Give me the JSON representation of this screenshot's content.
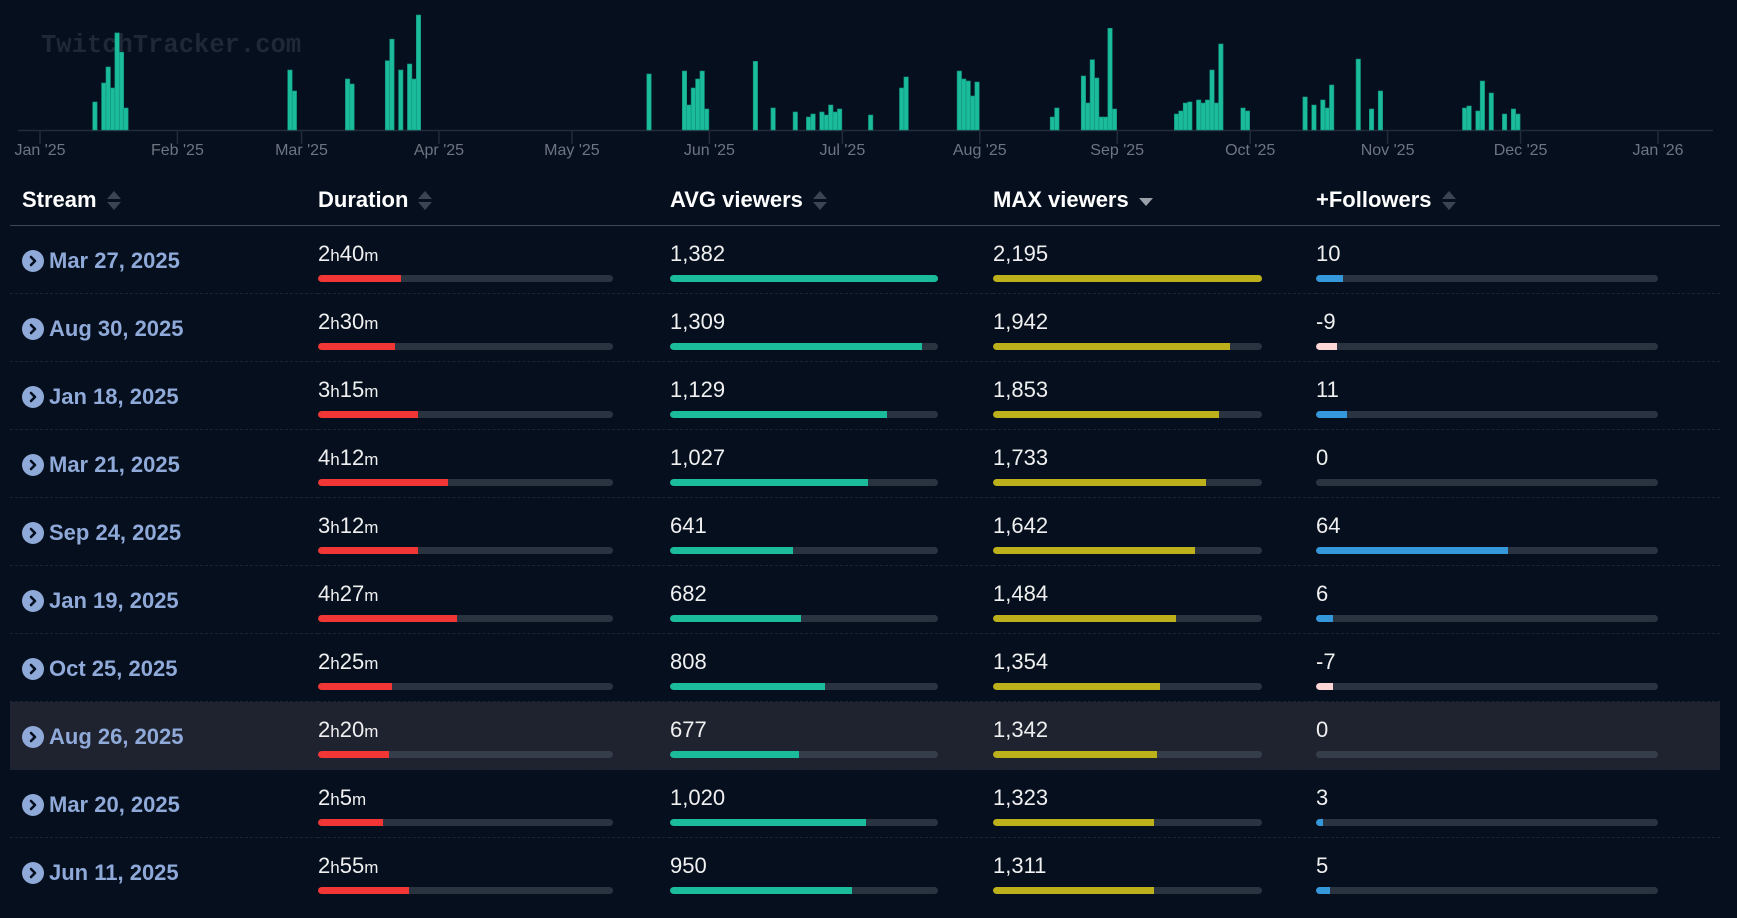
{
  "watermark": "TwitchTracker.com",
  "colors": {
    "background": "#050f1e",
    "chart_bar": "#1abc9c",
    "duration_bar": "#f23636",
    "avg_bar": "#1abc9c",
    "max_bar": "#bcb11b",
    "followers_positive_bar": "#3498db",
    "followers_negative_bar": "#ffd6d6",
    "link": "#8fa9d8"
  },
  "chart_data": {
    "type": "bar",
    "title": "",
    "xlabel": "",
    "ylabel": "MAX viewers",
    "x_range": [
      "2025-01-01",
      "2026-01-01"
    ],
    "ylim": [
      0,
      2195
    ],
    "grid": false,
    "legend": "none",
    "tick_labels": [
      "Jan '25",
      "Feb '25",
      "Mar '25",
      "Apr '25",
      "May '25",
      "Jun '25",
      "Jul '25",
      "Aug '25",
      "Sep '25",
      "Oct '25",
      "Nov '25",
      "Dec '25",
      "Jan '26"
    ],
    "tick_dates": [
      "2025-01-01",
      "2025-02-01",
      "2025-03-01",
      "2025-04-01",
      "2025-05-01",
      "2025-06-01",
      "2025-07-01",
      "2025-08-01",
      "2025-09-01",
      "2025-10-01",
      "2025-11-01",
      "2025-12-01",
      "2026-01-01"
    ],
    "points": [
      {
        "date": "2025-01-13",
        "value": 535
      },
      {
        "date": "2025-01-15",
        "value": 897
      },
      {
        "date": "2025-01-16",
        "value": 1203
      },
      {
        "date": "2025-01-17",
        "value": 802
      },
      {
        "date": "2025-01-18",
        "value": 1853
      },
      {
        "date": "2025-01-19",
        "value": 1484
      },
      {
        "date": "2025-01-20",
        "value": 420
      },
      {
        "date": "2025-02-26",
        "value": 1145
      },
      {
        "date": "2025-02-27",
        "value": 745
      },
      {
        "date": "2025-03-11",
        "value": 974
      },
      {
        "date": "2025-03-12",
        "value": 878
      },
      {
        "date": "2025-03-20",
        "value": 1323
      },
      {
        "date": "2025-03-21",
        "value": 1733
      },
      {
        "date": "2025-03-23",
        "value": 1145
      },
      {
        "date": "2025-03-25",
        "value": 1260
      },
      {
        "date": "2025-03-26",
        "value": 974
      },
      {
        "date": "2025-03-27",
        "value": 2195
      },
      {
        "date": "2025-05-18",
        "value": 1069
      },
      {
        "date": "2025-05-26",
        "value": 1126
      },
      {
        "date": "2025-05-27",
        "value": 477
      },
      {
        "date": "2025-05-28",
        "value": 802
      },
      {
        "date": "2025-05-29",
        "value": 974
      },
      {
        "date": "2025-05-30",
        "value": 1126
      },
      {
        "date": "2025-05-31",
        "value": 401
      },
      {
        "date": "2025-06-11",
        "value": 1311
      },
      {
        "date": "2025-06-15",
        "value": 420
      },
      {
        "date": "2025-06-20",
        "value": 344
      },
      {
        "date": "2025-06-23",
        "value": 248
      },
      {
        "date": "2025-06-24",
        "value": 305
      },
      {
        "date": "2025-06-26",
        "value": 344
      },
      {
        "date": "2025-06-27",
        "value": 286
      },
      {
        "date": "2025-06-28",
        "value": 477
      },
      {
        "date": "2025-06-29",
        "value": 344
      },
      {
        "date": "2025-06-30",
        "value": 401
      },
      {
        "date": "2025-07-07",
        "value": 286
      },
      {
        "date": "2025-07-14",
        "value": 802
      },
      {
        "date": "2025-07-15",
        "value": 1012
      },
      {
        "date": "2025-07-27",
        "value": 1126
      },
      {
        "date": "2025-07-28",
        "value": 974
      },
      {
        "date": "2025-07-29",
        "value": 935
      },
      {
        "date": "2025-07-30",
        "value": 649
      },
      {
        "date": "2025-07-31",
        "value": 916
      },
      {
        "date": "2025-08-17",
        "value": 248
      },
      {
        "date": "2025-08-18",
        "value": 420
      },
      {
        "date": "2025-08-24",
        "value": 1031
      },
      {
        "date": "2025-08-25",
        "value": 515
      },
      {
        "date": "2025-08-26",
        "value": 1342
      },
      {
        "date": "2025-08-27",
        "value": 993
      },
      {
        "date": "2025-08-28",
        "value": 248
      },
      {
        "date": "2025-08-29",
        "value": 248
      },
      {
        "date": "2025-08-30",
        "value": 1942
      },
      {
        "date": "2025-08-31",
        "value": 401
      },
      {
        "date": "2025-09-14",
        "value": 305
      },
      {
        "date": "2025-09-15",
        "value": 363
      },
      {
        "date": "2025-09-16",
        "value": 515
      },
      {
        "date": "2025-09-17",
        "value": 535
      },
      {
        "date": "2025-09-19",
        "value": 573
      },
      {
        "date": "2025-09-20",
        "value": 515
      },
      {
        "date": "2025-09-21",
        "value": 573
      },
      {
        "date": "2025-09-22",
        "value": 1145
      },
      {
        "date": "2025-09-23",
        "value": 515
      },
      {
        "date": "2025-09-24",
        "value": 1642
      },
      {
        "date": "2025-09-29",
        "value": 420
      },
      {
        "date": "2025-09-30",
        "value": 363
      },
      {
        "date": "2025-10-13",
        "value": 630
      },
      {
        "date": "2025-10-15",
        "value": 477
      },
      {
        "date": "2025-10-17",
        "value": 573
      },
      {
        "date": "2025-10-18",
        "value": 420
      },
      {
        "date": "2025-10-19",
        "value": 859
      },
      {
        "date": "2025-10-25",
        "value": 1354
      },
      {
        "date": "2025-10-28",
        "value": 401
      },
      {
        "date": "2025-10-30",
        "value": 745
      },
      {
        "date": "2025-11-18",
        "value": 420
      },
      {
        "date": "2025-11-19",
        "value": 458
      },
      {
        "date": "2025-11-21",
        "value": 363
      },
      {
        "date": "2025-11-22",
        "value": 935
      },
      {
        "date": "2025-11-24",
        "value": 706
      },
      {
        "date": "2025-11-27",
        "value": 305
      },
      {
        "date": "2025-11-29",
        "value": 401
      },
      {
        "date": "2025-11-30",
        "value": 305
      }
    ]
  },
  "table": {
    "columns": [
      {
        "label": "Stream",
        "sort": "none"
      },
      {
        "label": "Duration",
        "sort": "none"
      },
      {
        "label": "AVG viewers",
        "sort": "none"
      },
      {
        "label": "MAX viewers",
        "sort": "desc"
      },
      {
        "label": "+Followers",
        "sort": "none"
      }
    ],
    "highlighted_row": 7,
    "rows": [
      {
        "date": "Mar 27, 2025",
        "dur_h": "2",
        "dur_m": "40",
        "dur_pct": 28,
        "avg": "1,382",
        "avg_pct": 100,
        "max": "2,195",
        "max_pct": 100,
        "followers": "10",
        "fol_pct": 8,
        "fol_sign": "pos"
      },
      {
        "date": "Aug 30, 2025",
        "dur_h": "2",
        "dur_m": "30",
        "dur_pct": 26,
        "avg": "1,309",
        "avg_pct": 94,
        "max": "1,942",
        "max_pct": 88,
        "followers": "-9",
        "fol_pct": 6,
        "fol_sign": "neg"
      },
      {
        "date": "Jan 18, 2025",
        "dur_h": "3",
        "dur_m": "15",
        "dur_pct": 34,
        "avg": "1,129",
        "avg_pct": 81,
        "max": "1,853",
        "max_pct": 84,
        "followers": "11",
        "fol_pct": 9,
        "fol_sign": "pos"
      },
      {
        "date": "Mar 21, 2025",
        "dur_h": "4",
        "dur_m": "12",
        "dur_pct": 44,
        "avg": "1,027",
        "avg_pct": 74,
        "max": "1,733",
        "max_pct": 79,
        "followers": "0",
        "fol_pct": 0,
        "fol_sign": "pos"
      },
      {
        "date": "Sep 24, 2025",
        "dur_h": "3",
        "dur_m": "12",
        "dur_pct": 34,
        "avg": "641",
        "avg_pct": 46,
        "max": "1,642",
        "max_pct": 75,
        "followers": "64",
        "fol_pct": 56,
        "fol_sign": "pos"
      },
      {
        "date": "Jan 19, 2025",
        "dur_h": "4",
        "dur_m": "27",
        "dur_pct": 47,
        "avg": "682",
        "avg_pct": 49,
        "max": "1,484",
        "max_pct": 68,
        "followers": "6",
        "fol_pct": 5,
        "fol_sign": "pos"
      },
      {
        "date": "Oct 25, 2025",
        "dur_h": "2",
        "dur_m": "25",
        "dur_pct": 25,
        "avg": "808",
        "avg_pct": 58,
        "max": "1,354",
        "max_pct": 62,
        "followers": "-7",
        "fol_pct": 5,
        "fol_sign": "neg"
      },
      {
        "date": "Aug 26, 2025",
        "dur_h": "2",
        "dur_m": "20",
        "dur_pct": 24,
        "avg": "677",
        "avg_pct": 48,
        "max": "1,342",
        "max_pct": 61,
        "followers": "0",
        "fol_pct": 0,
        "fol_sign": "pos"
      },
      {
        "date": "Mar 20, 2025",
        "dur_h": "2",
        "dur_m": "5",
        "dur_pct": 22,
        "avg": "1,020",
        "avg_pct": 73,
        "max": "1,323",
        "max_pct": 60,
        "followers": "3",
        "fol_pct": 2,
        "fol_sign": "pos"
      },
      {
        "date": "Jun 11, 2025",
        "dur_h": "2",
        "dur_m": "55",
        "dur_pct": 31,
        "avg": "950",
        "avg_pct": 68,
        "max": "1,311",
        "max_pct": 60,
        "followers": "5",
        "fol_pct": 4,
        "fol_sign": "pos"
      }
    ],
    "units": {
      "hours": "h",
      "minutes": "m"
    }
  }
}
